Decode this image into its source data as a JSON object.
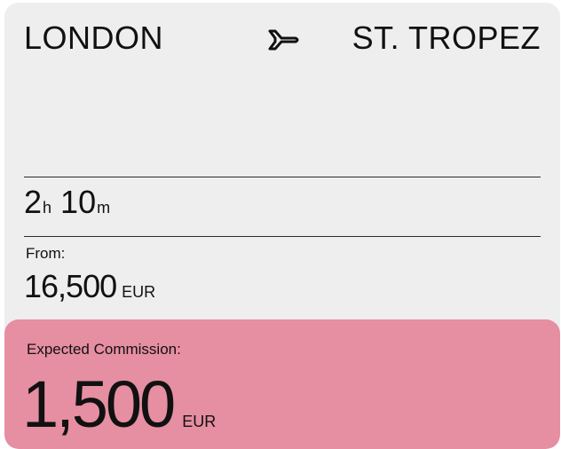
{
  "route": {
    "origin": "LONDON",
    "destination": "ST. TROPEZ",
    "icon": "plane-icon"
  },
  "duration": {
    "hours": "2",
    "hours_unit": "h",
    "minutes": "10",
    "minutes_unit": "m"
  },
  "price": {
    "label": "From:",
    "amount": "16,500",
    "currency": "EUR"
  },
  "commission": {
    "label": "Expected Commission:",
    "amount": "1,500",
    "currency": "EUR",
    "background_color": "#e68ea2"
  },
  "colors": {
    "card_background": "#eeeeee",
    "text": "#111111"
  }
}
